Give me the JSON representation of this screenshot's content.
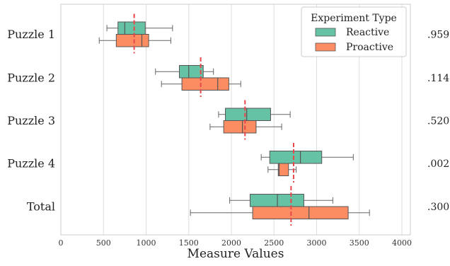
{
  "chart_data": {
    "type": "box",
    "orientation": "horizontal",
    "xlabel": "Measure Values",
    "xlim": [
      0,
      4100
    ],
    "xticks": [
      0,
      500,
      1000,
      1500,
      2000,
      2500,
      3000,
      3500,
      4000
    ],
    "grid": "vertical",
    "categories": [
      "Puzzle 1",
      "Puzzle 2",
      "Puzzle 3",
      "Puzzle 4",
      "Total"
    ],
    "right_labels": [
      ".959",
      ".114",
      ".520",
      ".002",
      ".300"
    ],
    "legend": {
      "title": "Experiment Type",
      "position": "top-right"
    },
    "series": [
      {
        "name": "Reactive",
        "color": "#66c2a5",
        "boxes": [
          {
            "whisker_low": 540,
            "q1": 670,
            "median": 750,
            "q3": 990,
            "whisker_high": 1310
          },
          {
            "whisker_low": 1110,
            "q1": 1390,
            "median": 1500,
            "q3": 1670,
            "whisker_high": 1790
          },
          {
            "whisker_low": 1850,
            "q1": 1930,
            "median": 2180,
            "q3": 2460,
            "whisker_high": 2690
          },
          {
            "whisker_low": 2350,
            "q1": 2450,
            "median": 2810,
            "q3": 3060,
            "whisker_high": 3430
          },
          {
            "whisker_low": 1980,
            "q1": 2220,
            "median": 2540,
            "q3": 2850,
            "whisker_high": 3190
          }
        ]
      },
      {
        "name": "Proactive",
        "color": "#fc8d62",
        "boxes": [
          {
            "whisker_low": 450,
            "q1": 650,
            "median": 950,
            "q3": 1030,
            "whisker_high": 1290
          },
          {
            "whisker_low": 1180,
            "q1": 1420,
            "median": 1840,
            "q3": 1970,
            "whisker_high": 2110
          },
          {
            "whisker_low": 1750,
            "q1": 1910,
            "median": 2130,
            "q3": 2290,
            "whisker_high": 2590
          },
          {
            "whisker_low": 2430,
            "q1": 2550,
            "median": 2560,
            "q3": 2670,
            "whisker_high": 2760
          },
          {
            "whisker_low": 1520,
            "q1": 2250,
            "median": 2910,
            "q3": 3370,
            "whisker_high": 3620
          }
        ]
      }
    ],
    "reference_lines": [
      {
        "category": "Puzzle 1",
        "value": 860
      },
      {
        "category": "Puzzle 2",
        "value": 1640
      },
      {
        "category": "Puzzle 3",
        "value": 2160
      },
      {
        "category": "Puzzle 4",
        "value": 2730
      },
      {
        "category": "Total",
        "value": 2700
      }
    ],
    "reference_line_color": "#e8474a"
  }
}
